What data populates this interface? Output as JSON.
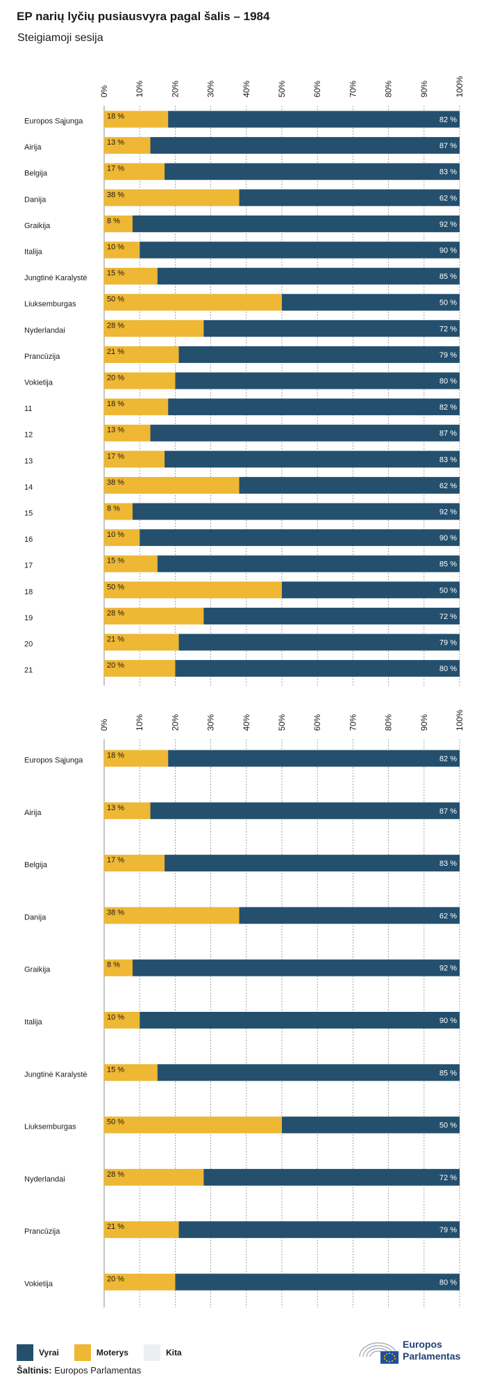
{
  "title": "EP narių lyčių pusiausvyra pagal šalis – 1984",
  "subtitle": "Steigiamoji sesija",
  "colors": {
    "Vyrai": "#24506e",
    "Moterys": "#eeb734",
    "Kita": "#eceef2"
  },
  "legend": [
    {
      "label": "Vyrai",
      "color": "#24506e"
    },
    {
      "label": "Moterys",
      "color": "#eeb734"
    },
    {
      "label": "Kita",
      "color": "#eceef2"
    }
  ],
  "source": {
    "label": "Šaltinis:",
    "text": "Europos Parlamentas"
  },
  "logo": {
    "line1": "Europos",
    "line2": "Parlamentas"
  },
  "chart_data": [
    {
      "type": "bar",
      "orientation": "horizontal",
      "stacked": true,
      "xlim": [
        0,
        100
      ],
      "ticks": [
        "0%",
        "10%",
        "20%",
        "30%",
        "40%",
        "50%",
        "60%",
        "70%",
        "80%",
        "90%",
        "100%"
      ],
      "categories": [
        "Europos Sąjunga",
        "Airija",
        "Belgija",
        "Danija",
        "Graikija",
        "Italija",
        "Jungtinė Karalystė",
        "Liuksemburgas",
        "Nyderlandai",
        "Prancūzija",
        "Vokietija",
        "11",
        "12",
        "13",
        "14",
        "15",
        "16",
        "17",
        "18",
        "19",
        "20",
        "21"
      ],
      "series": [
        {
          "name": "Moterys",
          "values": [
            18,
            13,
            17,
            38,
            8,
            10,
            15,
            50,
            28,
            21,
            20,
            18,
            13,
            17,
            38,
            8,
            10,
            15,
            50,
            28,
            21,
            20
          ]
        },
        {
          "name": "Vyrai",
          "values": [
            82,
            87,
            83,
            62,
            92,
            90,
            85,
            50,
            72,
            79,
            80,
            82,
            87,
            83,
            62,
            92,
            90,
            85,
            50,
            72,
            79,
            80
          ]
        }
      ],
      "data_labels": {
        "Moterys": [
          "18 %",
          "13 %",
          "17 %",
          "38 %",
          "8 %",
          "10 %",
          "15 %",
          "50 %",
          "28 %",
          "21 %",
          "20 %",
          "18 %",
          "13 %",
          "17 %",
          "38 %",
          "8 %",
          "10 %",
          "15 %",
          "50 %",
          "28 %",
          "21 %",
          "20 %"
        ],
        "Vyrai": [
          "82 %",
          "87 %",
          "83 %",
          "62 %",
          "92 %",
          "90 %",
          "85 %",
          "50 %",
          "72 %",
          "79 %",
          "80 %",
          "82 %",
          "87 %",
          "83 %",
          "62 %",
          "92 %",
          "90 %",
          "85 %",
          "50 %",
          "72 %",
          "79 %",
          "80 %"
        ]
      }
    },
    {
      "type": "bar",
      "orientation": "horizontal",
      "stacked": true,
      "xlim": [
        0,
        100
      ],
      "ticks": [
        "0%",
        "10%",
        "20%",
        "30%",
        "40%",
        "50%",
        "60%",
        "70%",
        "80%",
        "90%",
        "100%"
      ],
      "categories": [
        "Europos Sąjunga",
        "Airija",
        "Belgija",
        "Danija",
        "Graikija",
        "Italija",
        "Jungtinė Karalystė",
        "Liuksemburgas",
        "Nyderlandai",
        "Prancūzija",
        "Vokietija"
      ],
      "series": [
        {
          "name": "Moterys",
          "values": [
            18,
            13,
            17,
            38,
            8,
            10,
            15,
            50,
            28,
            21,
            20
          ]
        },
        {
          "name": "Vyrai",
          "values": [
            82,
            87,
            83,
            62,
            92,
            90,
            85,
            50,
            72,
            79,
            80
          ]
        }
      ],
      "data_labels": {
        "Moterys": [
          "18 %",
          "13 %",
          "17 %",
          "38 %",
          "8 %",
          "10 %",
          "15 %",
          "50 %",
          "28 %",
          "21 %",
          "20 %"
        ],
        "Vyrai": [
          "82 %",
          "87 %",
          "83 %",
          "62 %",
          "92 %",
          "90 %",
          "85 %",
          "50 %",
          "72 %",
          "79 %",
          "80 %"
        ]
      }
    }
  ]
}
